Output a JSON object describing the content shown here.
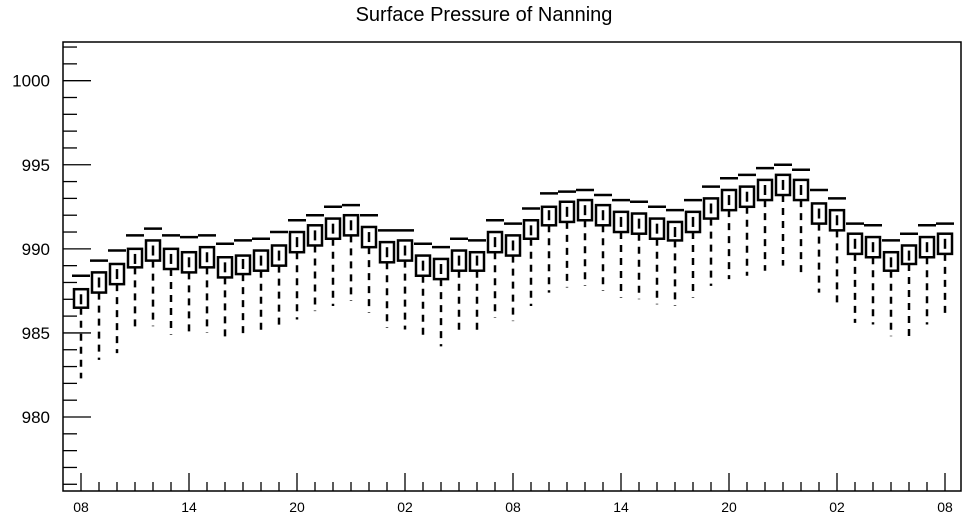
{
  "chart_data": {
    "type": "box",
    "title": "Surface Pressure of Nanning",
    "xlabel": "",
    "ylabel": "",
    "ylim": [
      975.6,
      1002.3
    ],
    "y_ticks": [
      980,
      985,
      990,
      995,
      1000
    ],
    "x_tick_labels": [
      "08",
      "14",
      "20",
      "02",
      "08",
      "14",
      "20",
      "02",
      "08"
    ],
    "x_tick_hours": [
      0,
      6,
      12,
      18,
      24,
      30,
      36,
      42,
      48
    ],
    "grid": false,
    "boxes": [
      {
        "hour": 0,
        "whisker_low": 982.3,
        "q1": 986.5,
        "median": 987.0,
        "q3": 987.6,
        "whisker_high": 988.4
      },
      {
        "hour": 1,
        "whisker_low": 983.4,
        "q1": 987.4,
        "median": 988.0,
        "q3": 988.6,
        "whisker_high": 989.3
      },
      {
        "hour": 2,
        "whisker_low": 983.8,
        "q1": 987.9,
        "median": 988.5,
        "q3": 989.1,
        "whisker_high": 989.9
      },
      {
        "hour": 3,
        "whisker_low": 985.1,
        "q1": 988.9,
        "median": 989.4,
        "q3": 990.0,
        "whisker_high": 990.8
      },
      {
        "hour": 4,
        "whisker_low": 985.4,
        "q1": 989.3,
        "median": 989.9,
        "q3": 990.5,
        "whisker_high": 991.2
      },
      {
        "hour": 5,
        "whisker_low": 984.9,
        "q1": 988.8,
        "median": 989.4,
        "q3": 990.0,
        "whisker_high": 990.8
      },
      {
        "hour": 6,
        "whisker_low": 984.8,
        "q1": 988.6,
        "median": 989.2,
        "q3": 989.8,
        "whisker_high": 990.7
      },
      {
        "hour": 7,
        "whisker_low": 985.0,
        "q1": 988.9,
        "median": 989.5,
        "q3": 990.1,
        "whisker_high": 990.8
      },
      {
        "hour": 8,
        "whisker_low": 984.5,
        "q1": 988.3,
        "median": 988.9,
        "q3": 989.5,
        "whisker_high": 990.3
      },
      {
        "hour": 9,
        "whisker_low": 984.7,
        "q1": 988.5,
        "median": 989.1,
        "q3": 989.6,
        "whisker_high": 990.5
      },
      {
        "hour": 10,
        "whisker_low": 984.9,
        "q1": 988.7,
        "median": 989.3,
        "q3": 989.9,
        "whisker_high": 990.6
      },
      {
        "hour": 11,
        "whisker_low": 985.2,
        "q1": 989.0,
        "median": 989.6,
        "q3": 990.2,
        "whisker_high": 991.0
      },
      {
        "hour": 12,
        "whisker_low": 985.8,
        "q1": 989.8,
        "median": 990.4,
        "q3": 991.0,
        "whisker_high": 991.7
      },
      {
        "hour": 13,
        "whisker_low": 986.3,
        "q1": 990.2,
        "median": 990.8,
        "q3": 991.4,
        "whisker_high": 992.0
      },
      {
        "hour": 14,
        "whisker_low": 986.6,
        "q1": 990.6,
        "median": 991.2,
        "q3": 991.8,
        "whisker_high": 992.5
      },
      {
        "hour": 15,
        "whisker_low": 986.9,
        "q1": 990.8,
        "median": 991.4,
        "q3": 992.0,
        "whisker_high": 992.6
      },
      {
        "hour": 16,
        "whisker_low": 986.2,
        "q1": 990.1,
        "median": 990.7,
        "q3": 991.3,
        "whisker_high": 992.0
      },
      {
        "hour": 17,
        "whisker_low": 985.3,
        "q1": 989.2,
        "median": 989.8,
        "q3": 990.4,
        "whisker_high": 991.1
      },
      {
        "hour": 18,
        "whisker_low": 985.2,
        "q1": 989.3,
        "median": 989.9,
        "q3": 990.5,
        "whisker_high": 991.1
      },
      {
        "hour": 19,
        "whisker_low": 984.6,
        "q1": 988.4,
        "median": 989.0,
        "q3": 989.6,
        "whisker_high": 990.3
      },
      {
        "hour": 20,
        "whisker_low": 984.2,
        "q1": 988.2,
        "median": 988.8,
        "q3": 989.4,
        "whisker_high": 990.1
      },
      {
        "hour": 21,
        "whisker_low": 984.9,
        "q1": 988.7,
        "median": 989.3,
        "q3": 989.9,
        "whisker_high": 990.6
      },
      {
        "hour": 22,
        "whisker_low": 984.9,
        "q1": 988.7,
        "median": 989.3,
        "q3": 989.8,
        "whisker_high": 990.5
      },
      {
        "hour": 23,
        "whisker_low": 985.9,
        "q1": 989.8,
        "median": 990.4,
        "q3": 991.0,
        "whisker_high": 991.7
      },
      {
        "hour": 24,
        "whisker_low": 985.7,
        "q1": 989.6,
        "median": 990.2,
        "q3": 990.8,
        "whisker_high": 991.5
      },
      {
        "hour": 25,
        "whisker_low": 986.6,
        "q1": 990.6,
        "median": 991.1,
        "q3": 991.7,
        "whisker_high": 992.4
      },
      {
        "hour": 26,
        "whisker_low": 987.4,
        "q1": 991.4,
        "median": 992.0,
        "q3": 992.5,
        "whisker_high": 993.3
      },
      {
        "hour": 27,
        "whisker_low": 987.7,
        "q1": 991.6,
        "median": 992.2,
        "q3": 992.8,
        "whisker_high": 993.4
      },
      {
        "hour": 28,
        "whisker_low": 987.8,
        "q1": 991.7,
        "median": 992.3,
        "q3": 992.9,
        "whisker_high": 993.5
      },
      {
        "hour": 29,
        "whisker_low": 987.5,
        "q1": 991.4,
        "median": 992.0,
        "q3": 992.6,
        "whisker_high": 993.2
      },
      {
        "hour": 30,
        "whisker_low": 987.1,
        "q1": 991.0,
        "median": 991.6,
        "q3": 992.2,
        "whisker_high": 992.9
      },
      {
        "hour": 31,
        "whisker_low": 987.0,
        "q1": 990.9,
        "median": 991.5,
        "q3": 992.1,
        "whisker_high": 992.8
      },
      {
        "hour": 32,
        "whisker_low": 986.7,
        "q1": 990.6,
        "median": 991.2,
        "q3": 991.8,
        "whisker_high": 992.5
      },
      {
        "hour": 33,
        "whisker_low": 986.6,
        "q1": 990.5,
        "median": 991.0,
        "q3": 991.6,
        "whisker_high": 992.3
      },
      {
        "hour": 34,
        "whisker_low": 987.1,
        "q1": 991.0,
        "median": 991.6,
        "q3": 992.2,
        "whisker_high": 992.9
      },
      {
        "hour": 35,
        "whisker_low": 987.8,
        "q1": 991.8,
        "median": 992.4,
        "q3": 993.0,
        "whisker_high": 993.7
      },
      {
        "hour": 36,
        "whisker_low": 988.2,
        "q1": 992.3,
        "median": 992.9,
        "q3": 993.5,
        "whisker_high": 994.2
      },
      {
        "hour": 37,
        "whisker_low": 988.4,
        "q1": 992.5,
        "median": 993.1,
        "q3": 993.7,
        "whisker_high": 994.4
      },
      {
        "hour": 38,
        "whisker_low": 988.7,
        "q1": 992.9,
        "median": 993.5,
        "q3": 994.1,
        "whisker_high": 994.8
      },
      {
        "hour": 39,
        "whisker_low": 989.0,
        "q1": 993.2,
        "median": 993.8,
        "q3": 994.4,
        "whisker_high": 995.0
      },
      {
        "hour": 40,
        "whisker_low": 988.6,
        "q1": 992.9,
        "median": 993.5,
        "q3": 994.1,
        "whisker_high": 994.7
      },
      {
        "hour": 41,
        "whisker_low": 987.4,
        "q1": 991.5,
        "median": 992.1,
        "q3": 992.7,
        "whisker_high": 993.5
      },
      {
        "hour": 42,
        "whisker_low": 986.8,
        "q1": 991.1,
        "median": 991.7,
        "q3": 992.3,
        "whisker_high": 993.0
      },
      {
        "hour": 43,
        "whisker_low": 985.6,
        "q1": 989.7,
        "median": 990.3,
        "q3": 990.9,
        "whisker_high": 991.5
      },
      {
        "hour": 44,
        "whisker_low": 985.5,
        "q1": 989.5,
        "median": 990.1,
        "q3": 990.7,
        "whisker_high": 991.4
      },
      {
        "hour": 45,
        "whisker_low": 984.8,
        "q1": 988.7,
        "median": 989.2,
        "q3": 989.8,
        "whisker_high": 990.5
      },
      {
        "hour": 46,
        "whisker_low": 984.8,
        "q1": 989.1,
        "median": 989.6,
        "q3": 990.2,
        "whisker_high": 990.9
      },
      {
        "hour": 47,
        "whisker_low": 985.5,
        "q1": 989.5,
        "median": 990.1,
        "q3": 990.7,
        "whisker_high": 991.4
      },
      {
        "hour": 48,
        "whisker_low": 985.9,
        "q1": 989.7,
        "median": 990.3,
        "q3": 990.9,
        "whisker_high": 991.5
      }
    ]
  }
}
